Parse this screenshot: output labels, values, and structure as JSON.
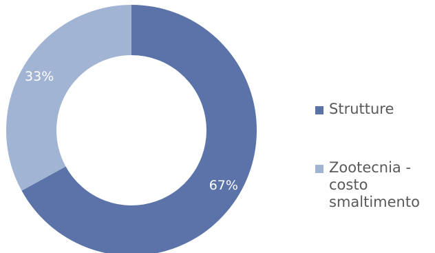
{
  "chart_data": {
    "type": "pie",
    "donut": true,
    "title": "",
    "categories": [
      "Strutture",
      "Zootecnia -\ncosto\nsmaltimento"
    ],
    "values": [
      67,
      33
    ],
    "value_labels": [
      "67%",
      "33%"
    ],
    "colors": [
      "#5b73a8",
      "#a2b4d3"
    ],
    "legend_placement": "right"
  }
}
